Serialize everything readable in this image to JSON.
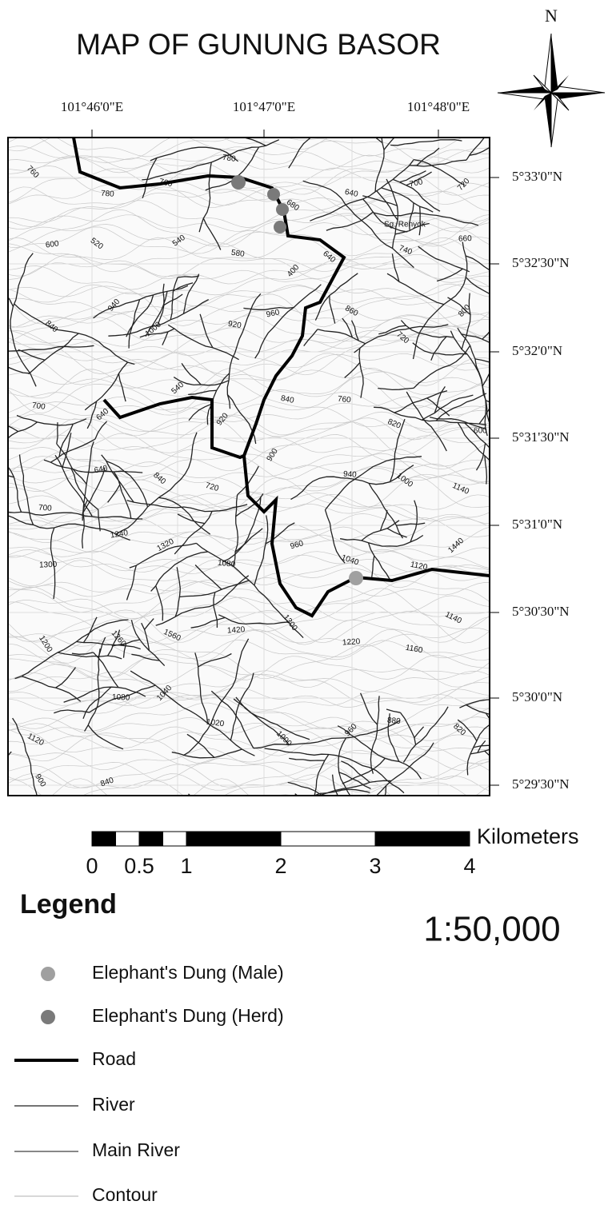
{
  "title": "MAP OF GUNUNG BASOR",
  "north_label": "N",
  "longitude_labels": [
    "101°46'0\"E",
    "101°47'0\"E",
    "101°48'0\"E"
  ],
  "latitude_labels": [
    "5°33'0\"N",
    "5°32'30\"N",
    "5°32'0\"N",
    "5°31'30\"N",
    "5°31'0\"N",
    "5°30'30\"N",
    "5°30'0\"N",
    "5°29'30\"N"
  ],
  "map": {
    "river_label": "Sg. Renyok",
    "contour_labels": [
      760,
      780,
      760,
      780,
      680,
      640,
      700,
      720,
      600,
      520,
      540,
      580,
      400,
      640,
      740,
      660,
      840,
      940,
      1000,
      920,
      960,
      860,
      720,
      800,
      700,
      640,
      540,
      920,
      840,
      760,
      820,
      600,
      700,
      640,
      840,
      720,
      900,
      940,
      1000,
      1140,
      1300,
      1240,
      1320,
      1080,
      960,
      1040,
      1120,
      1440,
      1200,
      1260,
      1560,
      1420,
      1300,
      1220,
      1160,
      1140,
      1120,
      1080,
      1040,
      1020,
      1000,
      960,
      880,
      820,
      900,
      840
    ]
  },
  "scale_bar": {
    "ticks": [
      0,
      0.5,
      1,
      2,
      3,
      4
    ],
    "unit": "Kilometers"
  },
  "scale_ratio": "1:50,000",
  "legend": {
    "title": "Legend",
    "items": [
      "Elephant's Dung (Male)",
      "Elephant's Dung (Herd)",
      "Road",
      "River",
      "Main River",
      "Contour"
    ]
  }
}
